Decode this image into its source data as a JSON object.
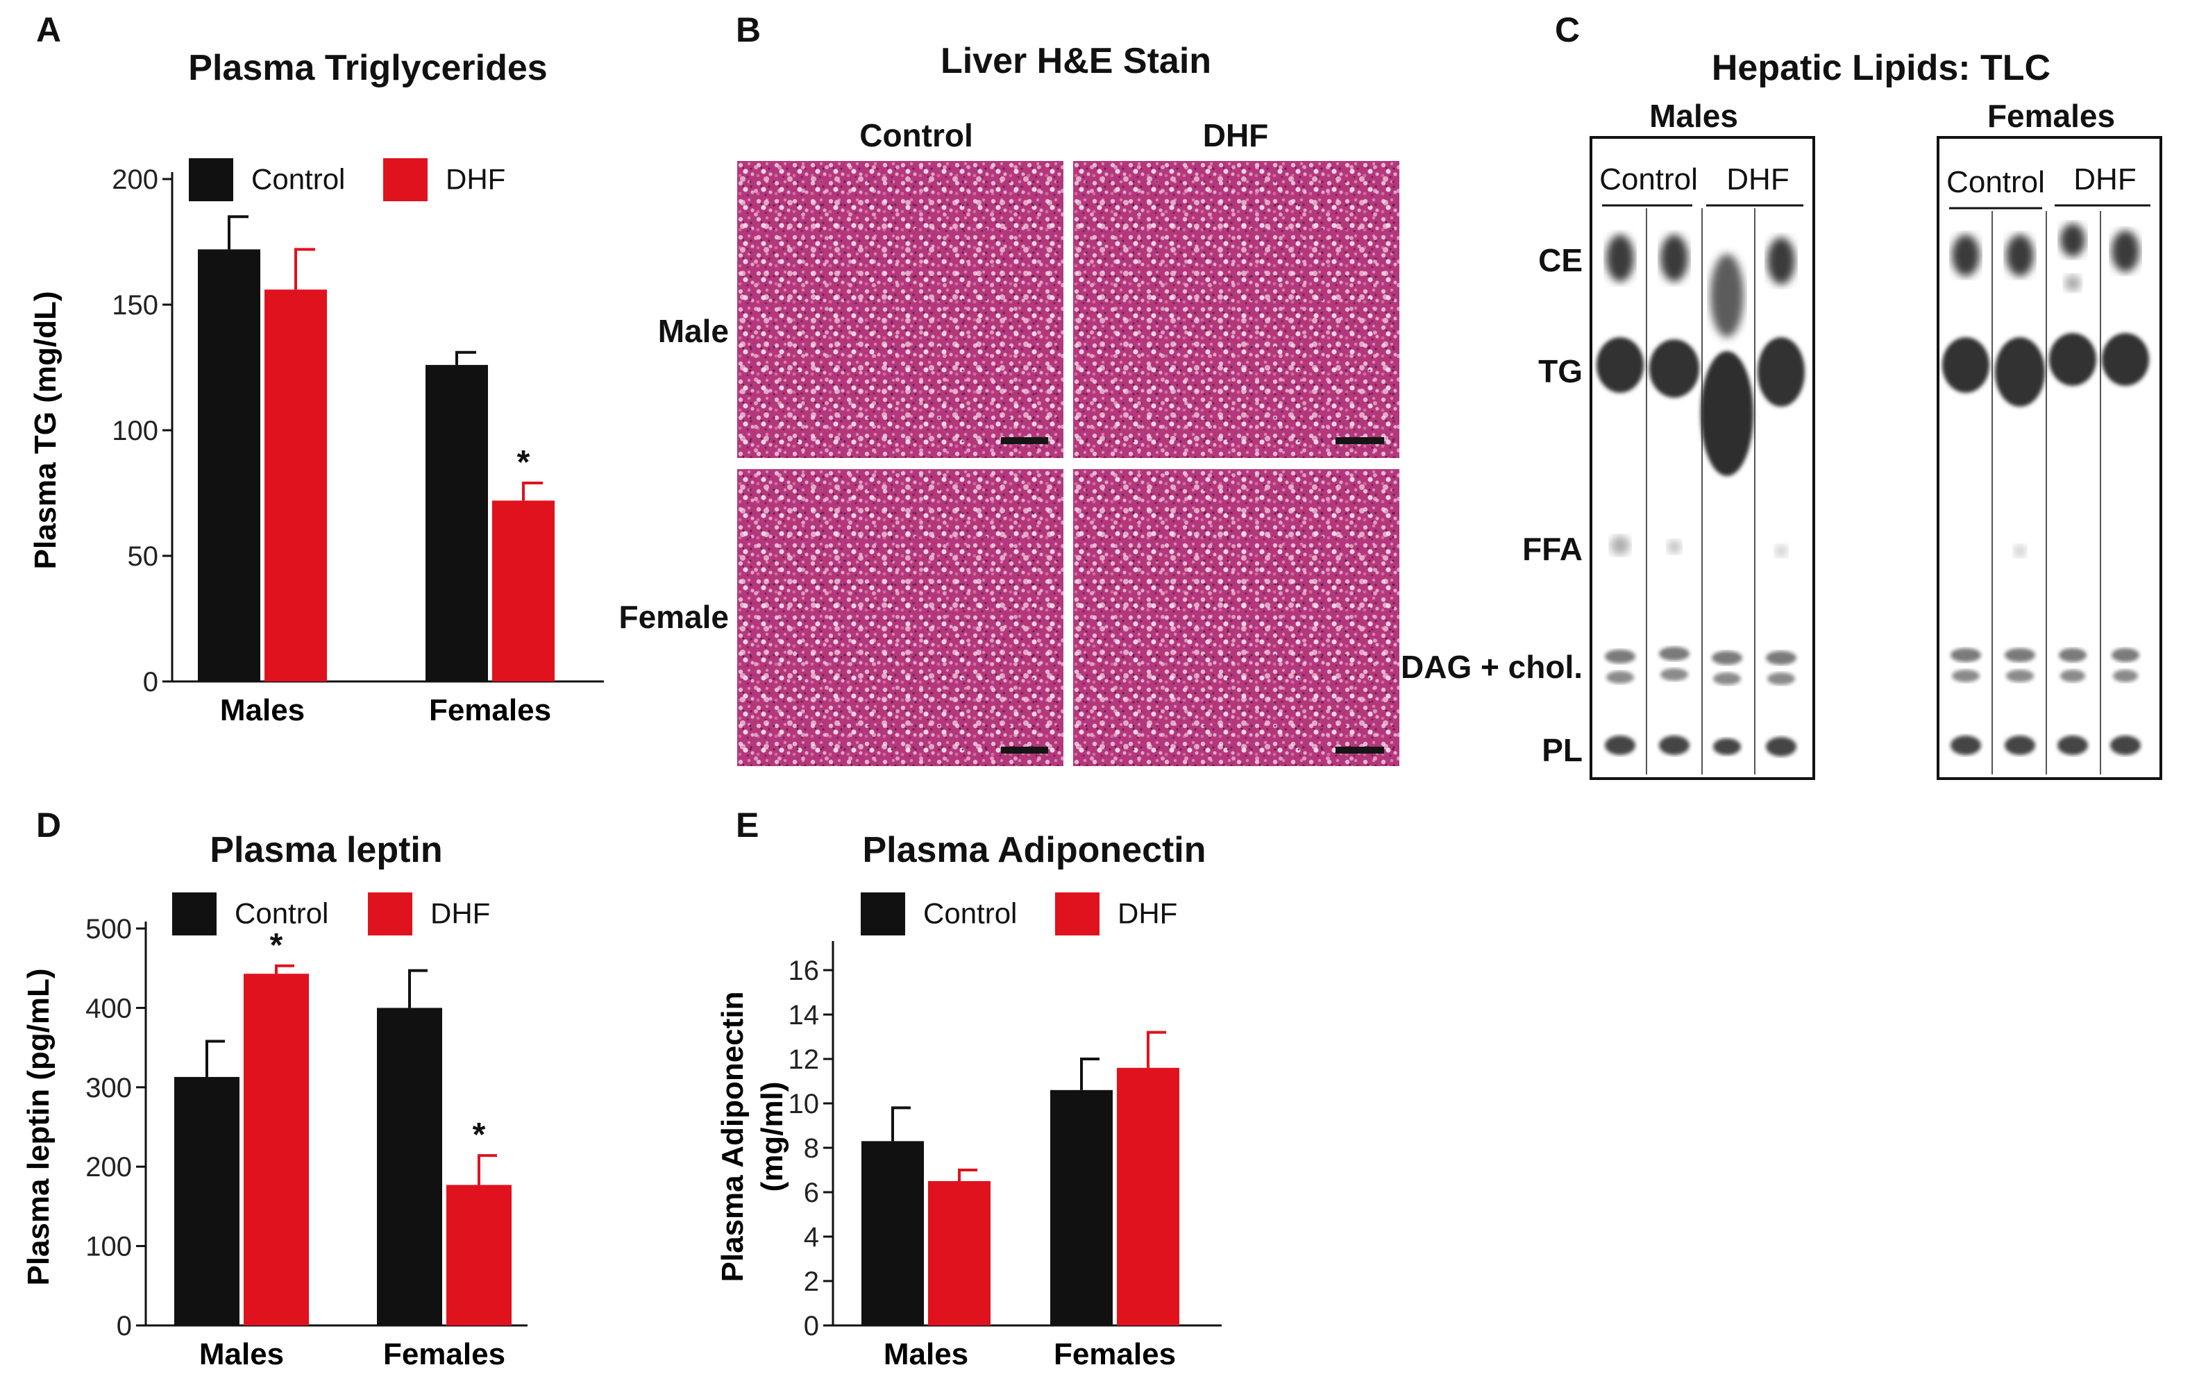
{
  "panels": {
    "A": {
      "letter": "A",
      "title": "Plasma Triglycerides"
    },
    "B": {
      "letter": "B",
      "title": "Liver H&E Stain",
      "col_labels": [
        "Control",
        "DHF"
      ],
      "row_labels": [
        "Male",
        "Female"
      ]
    },
    "C": {
      "letter": "C",
      "title": "Hepatic Lipids: TLC",
      "groups": [
        {
          "name": "Males",
          "conditions": [
            "Control",
            "DHF"
          ]
        },
        {
          "name": "Females",
          "conditions": [
            "Control",
            "DHF"
          ]
        }
      ],
      "bands": [
        "CE",
        "TG",
        "FFA",
        "DAG + chol.",
        "PL"
      ]
    },
    "D": {
      "letter": "D",
      "title": "Plasma leptin"
    },
    "E": {
      "letter": "E",
      "title": "Plasma Adiponectin"
    }
  },
  "colors": {
    "control": "#111111",
    "dhf": "#e0121e",
    "he_base": "#b3377a",
    "tlc_spot": "#3f3f3f"
  },
  "chart_data": [
    {
      "id": "A",
      "type": "bar",
      "title": "Plasma Triglycerides",
      "categories": [
        "Males",
        "Females"
      ],
      "ylabel": "Plasma TG (mg/dL)",
      "xlabel": "",
      "ylim": [
        0,
        200
      ],
      "yticks": [
        0,
        50,
        100,
        150,
        200
      ],
      "legend": "top",
      "series": [
        {
          "name": "Control",
          "values": [
            172,
            126
          ],
          "errors": [
            13,
            5
          ]
        },
        {
          "name": "DHF",
          "values": [
            156,
            72
          ],
          "errors": [
            16,
            7
          ]
        }
      ],
      "significance": [
        {
          "category": "Females",
          "series": "DHF",
          "mark": "*"
        }
      ]
    },
    {
      "id": "D",
      "type": "bar",
      "title": "Plasma leptin",
      "categories": [
        "Males",
        "Females"
      ],
      "ylabel": "Plasma leptin (pg/mL)",
      "xlabel": "",
      "ylim": [
        0,
        500
      ],
      "yticks": [
        0,
        100,
        200,
        300,
        400,
        500
      ],
      "legend": "top",
      "series": [
        {
          "name": "Control",
          "values": [
            313,
            400
          ],
          "errors": [
            45,
            47
          ]
        },
        {
          "name": "DHF",
          "values": [
            443,
            177
          ],
          "errors": [
            10,
            37
          ]
        }
      ],
      "significance": [
        {
          "category": "Males",
          "series": "DHF",
          "mark": "*"
        },
        {
          "category": "Females",
          "series": "DHF",
          "mark": "*"
        }
      ]
    },
    {
      "id": "E",
      "type": "bar",
      "title": "Plasma Adiponectin",
      "categories": [
        "Males",
        "Females"
      ],
      "ylabel": "Plasma Adiponectin (mg/ml)",
      "xlabel": "",
      "ylim": [
        0,
        17
      ],
      "yticks": [
        0,
        2,
        4,
        6,
        8,
        10,
        12,
        14,
        16
      ],
      "legend": "top",
      "series": [
        {
          "name": "Control",
          "values": [
            8.3,
            10.6
          ],
          "errors": [
            1.5,
            1.4
          ]
        },
        {
          "name": "DHF",
          "values": [
            6.5,
            11.6
          ],
          "errors": [
            0.5,
            1.6
          ]
        }
      ],
      "significance": []
    }
  ]
}
